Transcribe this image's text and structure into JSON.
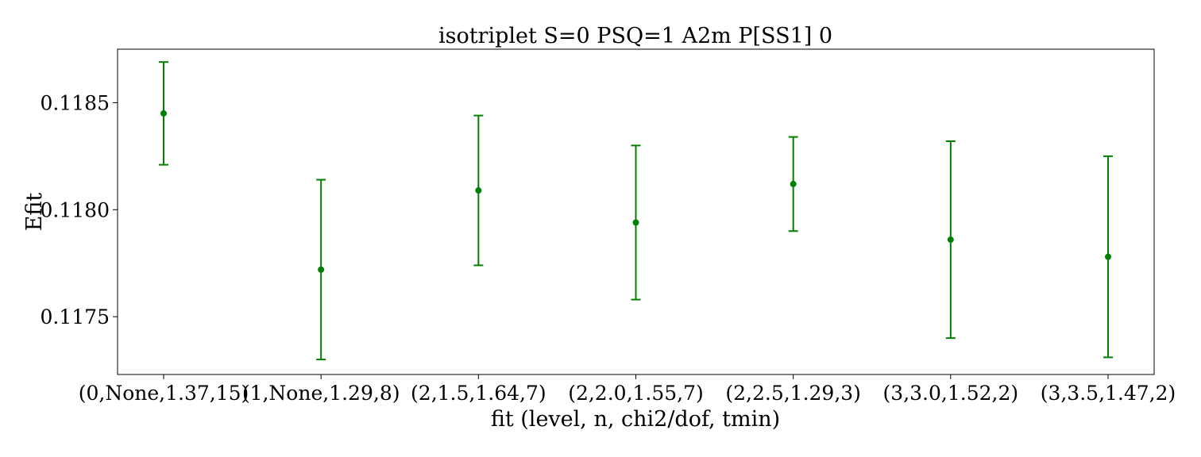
{
  "chart_data": {
    "type": "scatter",
    "title": "isotriplet S=0 PSQ=1 A2m P[SS1] 0",
    "xlabel": "fit (level, n, chi2/dof, tmin)",
    "ylabel": "Efit",
    "categories": [
      "(0,None,1.37,15)",
      "(1,None,1.29,8)",
      "(2,1.5,1.64,7)",
      "(2,2.0,1.55,7)",
      "(2,2.5,1.29,3)",
      "(3,3.0,1.52,2)",
      "(3,3.5,1.47,2)"
    ],
    "series": [
      {
        "values": [
          0.11845,
          0.11772,
          0.11809,
          0.11794,
          0.11812,
          0.11786,
          0.11778
        ],
        "errors": [
          0.00024,
          0.00042,
          0.00035,
          0.00036,
          0.00022,
          0.00046,
          0.00047
        ]
      }
    ],
    "yticks": [
      0.1175,
      0.118,
      0.1185
    ],
    "ytick_labels": [
      "0.1175",
      "0.1180",
      "0.1185"
    ],
    "ylim": [
      0.11723,
      0.11875
    ],
    "grid": false,
    "color": "#008000"
  }
}
